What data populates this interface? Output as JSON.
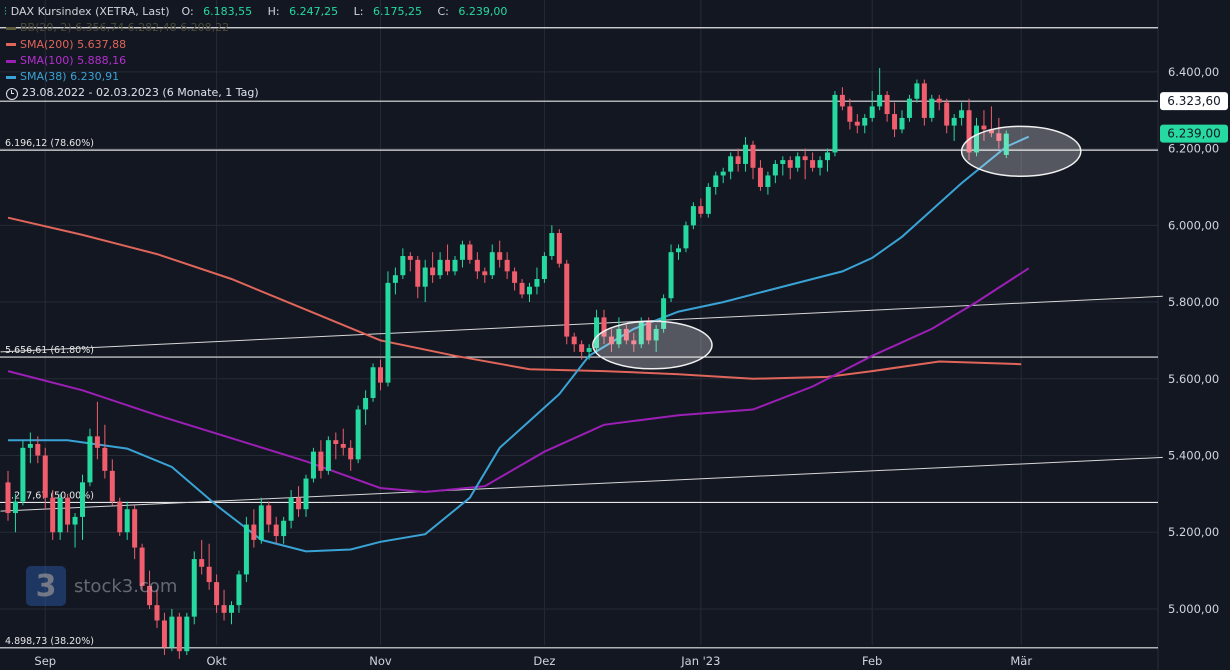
{
  "legend": {
    "title": "DAX Kursindex (XETRA, Last)",
    "ohlc": {
      "o_label": "O:",
      "o": "6.183,55",
      "h_label": "H:",
      "h": "6.247,25",
      "l_label": "L:",
      "l": "6.175,25",
      "c_label": "C:",
      "c": "6.239,00"
    },
    "bb": {
      "label": "BB(20, 2)",
      "v1": "6.356,74",
      "v2": "6.282,48",
      "v3": "6.208,22",
      "color": "#5d5a3c"
    },
    "sma200": {
      "label": "SMA(200)",
      "value": "5.637,88",
      "color": "#e0655a"
    },
    "sma100": {
      "label": "SMA(100)",
      "value": "5.888,16",
      "color": "#9c1fb5"
    },
    "sma38": {
      "label": "SMA(38)",
      "value": "6.230,91",
      "color": "#3aa3d6"
    },
    "range": "23.08.2022 - 02.03.2023  (6 Monate, 1 Tag)"
  },
  "colors": {
    "up": "#26d9a0",
    "down": "#f05d6c",
    "background": "#131722",
    "grid": "#262a35"
  },
  "logo": {
    "text": "stock3.com",
    "mark": "3"
  },
  "chart_data": {
    "type": "candlestick",
    "y_range": [
      4880,
      6530
    ],
    "y_ticks": [
      "6.400,00",
      "6.200,00",
      "6.000,00",
      "5.800,00",
      "5.600,00",
      "5.400,00",
      "5.200,00",
      "5.000,00"
    ],
    "y_tick_values": [
      6400,
      6200,
      6000,
      5800,
      5600,
      5400,
      5200,
      5000
    ],
    "x_ticks": [
      "Sep",
      "Okt",
      "Nov",
      "Dez",
      "Jan '23",
      "Feb",
      "Mär"
    ],
    "x_tick_index": [
      5,
      28,
      50,
      72,
      93,
      116,
      136
    ],
    "price_labels": [
      {
        "text": "6.323,60",
        "value": 6323.6,
        "style": "white"
      },
      {
        "text": "6.239,00",
        "value": 6239.0,
        "style": "green"
      }
    ],
    "fib_levels": [
      {
        "label": "6.196,12 (78.60%)",
        "value": 6196.12
      },
      {
        "label": "5.656,61 (61.80%)",
        "value": 5656.61
      },
      {
        "label": "5.277,67 (50.00%)",
        "value": 5277.67
      },
      {
        "label": "4.898,73 (38.20%)",
        "value": 4898.73
      },
      {
        "label": "",
        "value": 6515
      }
    ],
    "horizontal_line": 6323.6,
    "trend_lines": [
      {
        "from": [
          -1,
          5670
        ],
        "to": [
          155,
          5815
        ]
      },
      {
        "from": [
          -1,
          5255
        ],
        "to": [
          155,
          5395
        ]
      }
    ],
    "highlight_ellipses": [
      {
        "center": [
          86.5,
          5688
        ],
        "rx_bars": 8,
        "ry_value": 62
      },
      {
        "center": [
          136,
          6193
        ],
        "rx_bars": 8,
        "ry_value": 65
      }
    ],
    "candles": [
      [
        5330,
        5360,
        5230,
        5250
      ],
      [
        5250,
        5300,
        5200,
        5280
      ],
      [
        5280,
        5440,
        5270,
        5420
      ],
      [
        5420,
        5460,
        5380,
        5430
      ],
      [
        5430,
        5450,
        5380,
        5400
      ],
      [
        5400,
        5420,
        5260,
        5290
      ],
      [
        5290,
        5310,
        5180,
        5200
      ],
      [
        5200,
        5300,
        5180,
        5290
      ],
      [
        5290,
        5300,
        5200,
        5220
      ],
      [
        5220,
        5250,
        5160,
        5240
      ],
      [
        5240,
        5350,
        5180,
        5330
      ],
      [
        5330,
        5470,
        5320,
        5450
      ],
      [
        5450,
        5540,
        5390,
        5420
      ],
      [
        5420,
        5480,
        5340,
        5360
      ],
      [
        5360,
        5390,
        5270,
        5280
      ],
      [
        5280,
        5290,
        5190,
        5200
      ],
      [
        5200,
        5280,
        5180,
        5260
      ],
      [
        5260,
        5270,
        5130,
        5160
      ],
      [
        5160,
        5170,
        5050,
        5060
      ],
      [
        5060,
        5100,
        5000,
        5010
      ],
      [
        5010,
        5050,
        4950,
        4970
      ],
      [
        4970,
        4990,
        4880,
        4900
      ],
      [
        4900,
        5000,
        4890,
        4980
      ],
      [
        4980,
        4990,
        4870,
        4890
      ],
      [
        4890,
        4990,
        4880,
        4980
      ],
      [
        4980,
        5150,
        4960,
        5130
      ],
      [
        5130,
        5180,
        5090,
        5110
      ],
      [
        5110,
        5170,
        5050,
        5070
      ],
      [
        5070,
        5090,
        4990,
        5010
      ],
      [
        5010,
        5050,
        4970,
        4990
      ],
      [
        4990,
        5020,
        4960,
        5010
      ],
      [
        5010,
        5100,
        4990,
        5090
      ],
      [
        5090,
        5240,
        5070,
        5220
      ],
      [
        5220,
        5260,
        5160,
        5180
      ],
      [
        5180,
        5290,
        5170,
        5270
      ],
      [
        5270,
        5280,
        5200,
        5220
      ],
      [
        5220,
        5240,
        5170,
        5190
      ],
      [
        5190,
        5240,
        5170,
        5230
      ],
      [
        5230,
        5310,
        5210,
        5290
      ],
      [
        5290,
        5320,
        5240,
        5260
      ],
      [
        5260,
        5350,
        5240,
        5340
      ],
      [
        5340,
        5420,
        5330,
        5410
      ],
      [
        5410,
        5440,
        5340,
        5360
      ],
      [
        5360,
        5450,
        5350,
        5440
      ],
      [
        5440,
        5460,
        5390,
        5430
      ],
      [
        5430,
        5470,
        5400,
        5420
      ],
      [
        5420,
        5440,
        5360,
        5390
      ],
      [
        5390,
        5530,
        5380,
        5520
      ],
      [
        5520,
        5570,
        5480,
        5550
      ],
      [
        5550,
        5640,
        5540,
        5630
      ],
      [
        5630,
        5650,
        5570,
        5590
      ],
      [
        5590,
        5880,
        5580,
        5850
      ],
      [
        5850,
        5890,
        5820,
        5870
      ],
      [
        5870,
        5940,
        5860,
        5920
      ],
      [
        5920,
        5930,
        5880,
        5910
      ],
      [
        5910,
        5920,
        5810,
        5840
      ],
      [
        5840,
        5910,
        5800,
        5890
      ],
      [
        5890,
        5930,
        5850,
        5870
      ],
      [
        5870,
        5930,
        5860,
        5910
      ],
      [
        5910,
        5950,
        5870,
        5880
      ],
      [
        5880,
        5920,
        5870,
        5910
      ],
      [
        5910,
        5960,
        5890,
        5950
      ],
      [
        5950,
        5960,
        5900,
        5910
      ],
      [
        5910,
        5930,
        5860,
        5880
      ],
      [
        5880,
        5890,
        5850,
        5870
      ],
      [
        5870,
        5950,
        5860,
        5930
      ],
      [
        5930,
        5960,
        5890,
        5910
      ],
      [
        5910,
        5930,
        5860,
        5880
      ],
      [
        5880,
        5890,
        5830,
        5850
      ],
      [
        5850,
        5860,
        5810,
        5820
      ],
      [
        5820,
        5850,
        5800,
        5840
      ],
      [
        5840,
        5890,
        5820,
        5860
      ],
      [
        5860,
        5930,
        5850,
        5920
      ],
      [
        5920,
        6000,
        5910,
        5980
      ],
      [
        5980,
        5990,
        5890,
        5900
      ],
      [
        5900,
        5910,
        5690,
        5710
      ],
      [
        5710,
        5720,
        5670,
        5690
      ],
      [
        5690,
        5700,
        5650,
        5670
      ],
      [
        5670,
        5690,
        5650,
        5680
      ],
      [
        5680,
        5780,
        5670,
        5760
      ],
      [
        5760,
        5780,
        5690,
        5710
      ],
      [
        5710,
        5730,
        5670,
        5690
      ],
      [
        5690,
        5760,
        5680,
        5730
      ],
      [
        5730,
        5740,
        5690,
        5700
      ],
      [
        5700,
        5720,
        5670,
        5690
      ],
      [
        5690,
        5760,
        5680,
        5750
      ],
      [
        5750,
        5760,
        5690,
        5700
      ],
      [
        5700,
        5740,
        5670,
        5730
      ],
      [
        5730,
        5820,
        5720,
        5810
      ],
      [
        5810,
        5950,
        5800,
        5930
      ],
      [
        5930,
        5950,
        5910,
        5940
      ],
      [
        5940,
        6010,
        5930,
        6000
      ],
      [
        6000,
        6060,
        5990,
        6050
      ],
      [
        6050,
        6070,
        6020,
        6030
      ],
      [
        6030,
        6110,
        6020,
        6100
      ],
      [
        6100,
        6140,
        6080,
        6130
      ],
      [
        6130,
        6150,
        6110,
        6140
      ],
      [
        6140,
        6190,
        6120,
        6180
      ],
      [
        6180,
        6200,
        6140,
        6160
      ],
      [
        6160,
        6230,
        6140,
        6210
      ],
      [
        6210,
        6220,
        6120,
        6150
      ],
      [
        6150,
        6170,
        6090,
        6100
      ],
      [
        6100,
        6140,
        6080,
        6130
      ],
      [
        6130,
        6170,
        6110,
        6160
      ],
      [
        6160,
        6180,
        6130,
        6170
      ],
      [
        6170,
        6180,
        6120,
        6150
      ],
      [
        6150,
        6190,
        6140,
        6180
      ],
      [
        6180,
        6200,
        6120,
        6170
      ],
      [
        6170,
        6190,
        6140,
        6150
      ],
      [
        6150,
        6180,
        6130,
        6170
      ],
      [
        6170,
        6200,
        6140,
        6190
      ],
      [
        6190,
        6350,
        6180,
        6340
      ],
      [
        6340,
        6360,
        6300,
        6310
      ],
      [
        6310,
        6330,
        6250,
        6270
      ],
      [
        6270,
        6290,
        6240,
        6260
      ],
      [
        6260,
        6290,
        6240,
        6280
      ],
      [
        6280,
        6350,
        6270,
        6310
      ],
      [
        6310,
        6410,
        6300,
        6340
      ],
      [
        6340,
        6350,
        6270,
        6290
      ],
      [
        6290,
        6320,
        6230,
        6250
      ],
      [
        6250,
        6300,
        6240,
        6280
      ],
      [
        6280,
        6340,
        6270,
        6330
      ],
      [
        6330,
        6380,
        6320,
        6370
      ],
      [
        6370,
        6380,
        6260,
        6280
      ],
      [
        6280,
        6340,
        6270,
        6330
      ],
      [
        6330,
        6340,
        6300,
        6320
      ],
      [
        6320,
        6330,
        6240,
        6260
      ],
      [
        6260,
        6290,
        6220,
        6280
      ],
      [
        6280,
        6320,
        6260,
        6300
      ],
      [
        6300,
        6330,
        6170,
        6190
      ],
      [
        6190,
        6280,
        6180,
        6260
      ],
      [
        6260,
        6300,
        6220,
        6250
      ],
      [
        6250,
        6310,
        6230,
        6240
      ],
      [
        6240,
        6280,
        6200,
        6220
      ],
      [
        6183.55,
        6247.25,
        6175.25,
        6239
      ]
    ],
    "sma200": [
      [
        0,
        6020
      ],
      [
        10,
        5975
      ],
      [
        20,
        5925
      ],
      [
        30,
        5860
      ],
      [
        40,
        5780
      ],
      [
        50,
        5700
      ],
      [
        60,
        5660
      ],
      [
        70,
        5625
      ],
      [
        80,
        5620
      ],
      [
        90,
        5612
      ],
      [
        100,
        5600
      ],
      [
        110,
        5605
      ],
      [
        116,
        5620
      ],
      [
        125,
        5645
      ],
      [
        136,
        5638
      ]
    ],
    "sma100": [
      [
        0,
        5620
      ],
      [
        10,
        5570
      ],
      [
        20,
        5505
      ],
      [
        30,
        5445
      ],
      [
        40,
        5385
      ],
      [
        50,
        5315
      ],
      [
        56,
        5305
      ],
      [
        64,
        5320
      ],
      [
        72,
        5410
      ],
      [
        80,
        5480
      ],
      [
        90,
        5505
      ],
      [
        100,
        5520
      ],
      [
        108,
        5580
      ],
      [
        116,
        5660
      ],
      [
        124,
        5730
      ],
      [
        130,
        5800
      ],
      [
        137,
        5888
      ]
    ],
    "sma38": [
      [
        0,
        5440
      ],
      [
        8,
        5440
      ],
      [
        16,
        5418
      ],
      [
        22,
        5370
      ],
      [
        28,
        5270
      ],
      [
        34,
        5180
      ],
      [
        40,
        5150
      ],
      [
        46,
        5155
      ],
      [
        50,
        5175
      ],
      [
        56,
        5195
      ],
      [
        62,
        5290
      ],
      [
        66,
        5420
      ],
      [
        70,
        5490
      ],
      [
        74,
        5560
      ],
      [
        78,
        5660
      ],
      [
        84,
        5730
      ],
      [
        90,
        5775
      ],
      [
        96,
        5800
      ],
      [
        102,
        5830
      ],
      [
        108,
        5860
      ],
      [
        112,
        5880
      ],
      [
        116,
        5915
      ],
      [
        120,
        5970
      ],
      [
        124,
        6040
      ],
      [
        128,
        6110
      ],
      [
        134,
        6205
      ],
      [
        137,
        6231
      ]
    ]
  }
}
